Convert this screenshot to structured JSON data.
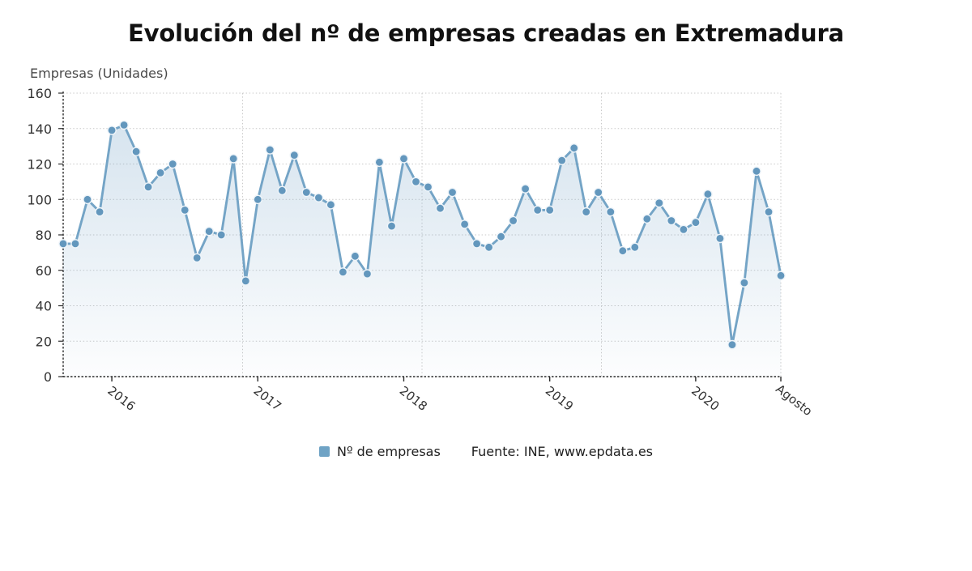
{
  "page": {
    "title": "Evolución del nº de empresas creadas en Extremadura"
  },
  "chart_data": {
    "type": "line",
    "title": "Evolución del nº de empresas creadas en Extremadura",
    "ylabel": "Empresas (Unidades)",
    "xlabel": "",
    "ylim": [
      0,
      160
    ],
    "ytick_step": 20,
    "grid": true,
    "legend_position": "bottom",
    "series": [
      {
        "name": "Nº de empresas",
        "values": [
          75,
          75,
          100,
          93,
          139,
          142,
          127,
          107,
          115,
          120,
          94,
          67,
          82,
          80,
          123,
          54,
          100,
          128,
          105,
          125,
          104,
          101,
          97,
          59,
          68,
          58,
          121,
          85,
          123,
          110,
          107,
          95,
          104,
          86,
          75,
          73,
          79,
          88,
          106,
          94,
          94,
          122,
          129,
          93,
          104,
          93,
          71,
          73,
          89,
          98,
          88,
          83,
          87,
          103,
          78,
          18,
          53,
          116,
          93,
          57
        ]
      }
    ],
    "x_ticks": [
      {
        "index": 4,
        "label": "2016"
      },
      {
        "index": 16,
        "label": "2017"
      },
      {
        "index": 28,
        "label": "2018"
      },
      {
        "index": 40,
        "label": "2019"
      },
      {
        "index": 52,
        "label": "2020"
      },
      {
        "index": 59,
        "label": "Agosto"
      }
    ],
    "colors": {
      "line": "#74a4c6",
      "marker": "#6397bd",
      "marker_ring": "#eef4f9",
      "area_top": "rgba(122,166,201,0.30)",
      "area_bottom": "rgba(122,166,201,0.02)",
      "grid": "#c9c9c9",
      "axis": "#2b2b2b",
      "tick_label": "#333333"
    }
  },
  "legend": {
    "label": "Nº de empresas",
    "source": "Fuente: INE, www.epdata.es",
    "swatch_color": "#6fa3c5"
  }
}
